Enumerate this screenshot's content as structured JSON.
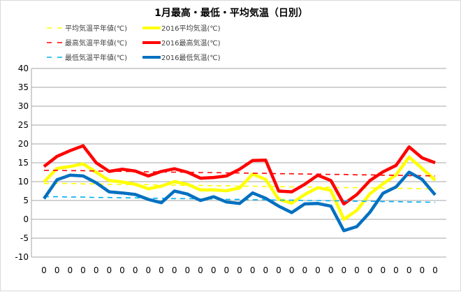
{
  "chart_data": {
    "type": "line",
    "title": "1月最高・最低・平均気温（日別）",
    "xlabel": "",
    "ylabel": "",
    "ylim": [
      -10,
      40
    ],
    "yticks": [
      "40",
      "35",
      "30",
      "25",
      "20",
      "15",
      "10",
      "5",
      "0",
      "-5",
      "-10"
    ],
    "ytick_values": [
      40,
      35,
      30,
      25,
      20,
      15,
      10,
      5,
      0,
      -5,
      -10
    ],
    "xtick_labels": [
      "0",
      "0",
      "0",
      "0",
      "0",
      "0",
      "0",
      "0",
      "0",
      "0",
      "0",
      "0",
      "0",
      "0",
      "0",
      "0",
      "0",
      "0",
      "0",
      "0",
      "0",
      "0",
      "0",
      "0",
      "0",
      "0",
      "0",
      "0",
      "0",
      "0",
      "0"
    ],
    "grid": true,
    "legend_placement": "top-left",
    "series": [
      {
        "name": "平均気温平年値(℃)",
        "color": "#ffff00",
        "style": "dashed",
        "values": [
          9.5,
          9.5,
          9.5,
          9.4,
          9.4,
          9.3,
          9.3,
          9.2,
          9.2,
          9.1,
          9.1,
          9.0,
          9.0,
          8.9,
          8.9,
          8.8,
          8.8,
          8.7,
          8.7,
          8.6,
          8.6,
          8.5,
          8.5,
          8.4,
          8.4,
          8.3,
          8.3,
          8.2,
          8.2,
          8.1,
          8.0
        ]
      },
      {
        "name": "2016平均気温(℃)",
        "color": "#ffff00",
        "style": "solid",
        "values": [
          9.9,
          13.5,
          14.0,
          14.7,
          12.5,
          10.3,
          9.9,
          9.3,
          8.1,
          8.8,
          10.0,
          9.3,
          7.8,
          7.8,
          7.6,
          8.3,
          12.0,
          10.6,
          5.3,
          4.3,
          6.6,
          8.4,
          7.7,
          0.0,
          2.4,
          6.8,
          9.4,
          11.8,
          16.5,
          13.5,
          10.4
        ]
      },
      {
        "name": "最高気温平年値(℃)",
        "color": "#ff0000",
        "style": "dashed",
        "values": [
          13.0,
          13.0,
          12.9,
          12.9,
          12.8,
          12.8,
          12.7,
          12.7,
          12.6,
          12.6,
          12.5,
          12.5,
          12.4,
          12.4,
          12.3,
          12.3,
          12.2,
          12.2,
          12.1,
          12.1,
          12.0,
          12.0,
          11.9,
          11.9,
          11.8,
          11.8,
          11.7,
          11.7,
          11.6,
          11.6,
          11.5
        ]
      },
      {
        "name": "2016最高気温(℃)",
        "color": "#ff0000",
        "style": "solid",
        "values": [
          14.0,
          16.7,
          18.2,
          19.5,
          15.0,
          12.7,
          13.3,
          12.8,
          11.5,
          12.7,
          13.4,
          12.5,
          10.9,
          11.1,
          11.5,
          13.3,
          15.6,
          15.7,
          7.5,
          7.3,
          9.3,
          11.7,
          10.3,
          4.1,
          6.6,
          10.3,
          12.6,
          14.3,
          19.2,
          16.3,
          15.0
        ]
      },
      {
        "name": "最低気温平年値(℃)",
        "color": "#00b0f0",
        "style": "dashed",
        "values": [
          6.0,
          6.0,
          5.9,
          5.9,
          5.8,
          5.8,
          5.7,
          5.7,
          5.6,
          5.6,
          5.5,
          5.5,
          5.4,
          5.4,
          5.3,
          5.3,
          5.2,
          5.2,
          5.1,
          5.1,
          5.0,
          5.0,
          4.9,
          4.9,
          4.8,
          4.8,
          4.7,
          4.7,
          4.6,
          4.6,
          4.5
        ]
      },
      {
        "name": "2016最低気温(℃)",
        "color": "#0070c0",
        "style": "solid",
        "values": [
          5.5,
          10.5,
          11.7,
          11.5,
          9.7,
          7.3,
          7.0,
          6.6,
          5.3,
          4.4,
          7.5,
          6.7,
          5.0,
          6.0,
          4.6,
          4.2,
          7.0,
          5.6,
          3.5,
          1.8,
          4.1,
          4.2,
          3.5,
          -3.0,
          -1.9,
          1.9,
          6.9,
          8.6,
          12.5,
          10.6,
          6.5
        ]
      }
    ]
  }
}
